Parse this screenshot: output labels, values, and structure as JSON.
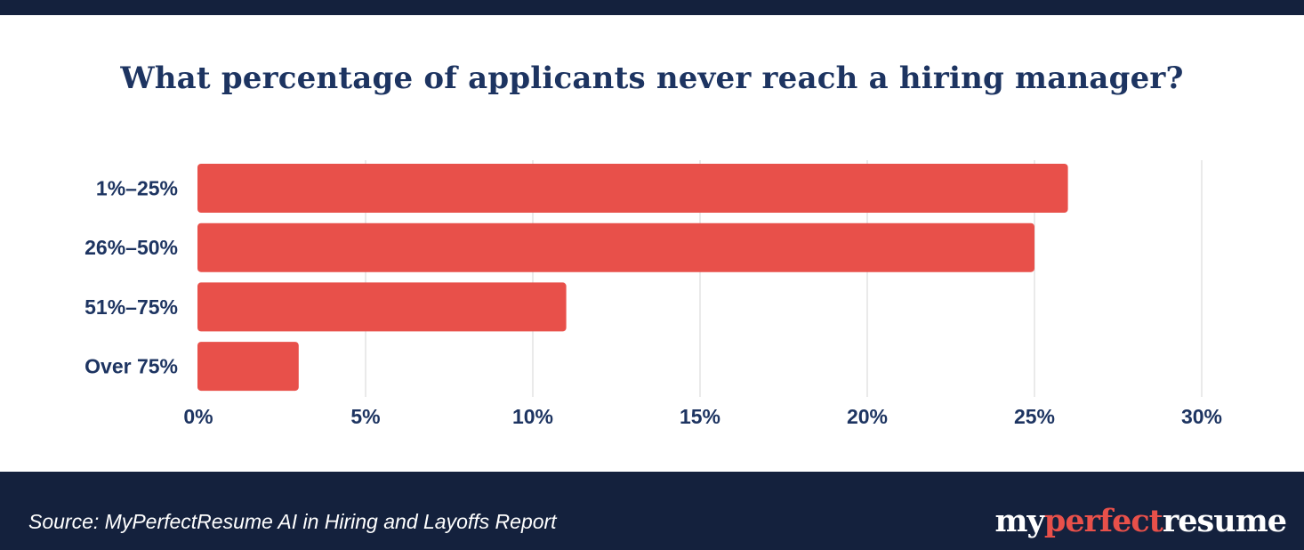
{
  "colors": {
    "bar": "#e8504a",
    "navy": "#14213d",
    "title": "#1d3461",
    "axis_text": "#1d3461",
    "grid": "#e3e3e3"
  },
  "chart_data": {
    "type": "bar",
    "orientation": "horizontal",
    "title": "What percentage of applicants never reach a hiring manager?",
    "categories": [
      "1%–25%",
      "26%–50%",
      "51%–75%",
      "Over 75%"
    ],
    "values": [
      26,
      25,
      11,
      3
    ],
    "unit": "%",
    "xlim": [
      0,
      30
    ],
    "xticks": [
      "0%",
      "5%",
      "10%",
      "15%",
      "20%",
      "25%",
      "30%"
    ],
    "xtick_values": [
      0,
      5,
      10,
      15,
      20,
      25,
      30
    ],
    "grid": "vertical",
    "legend": "none"
  },
  "footer": {
    "source": "Source: MyPerfectResume AI in Hiring and Layoffs Report",
    "brand": {
      "part1": "my",
      "part2": "perfect",
      "part3": "resume"
    }
  }
}
